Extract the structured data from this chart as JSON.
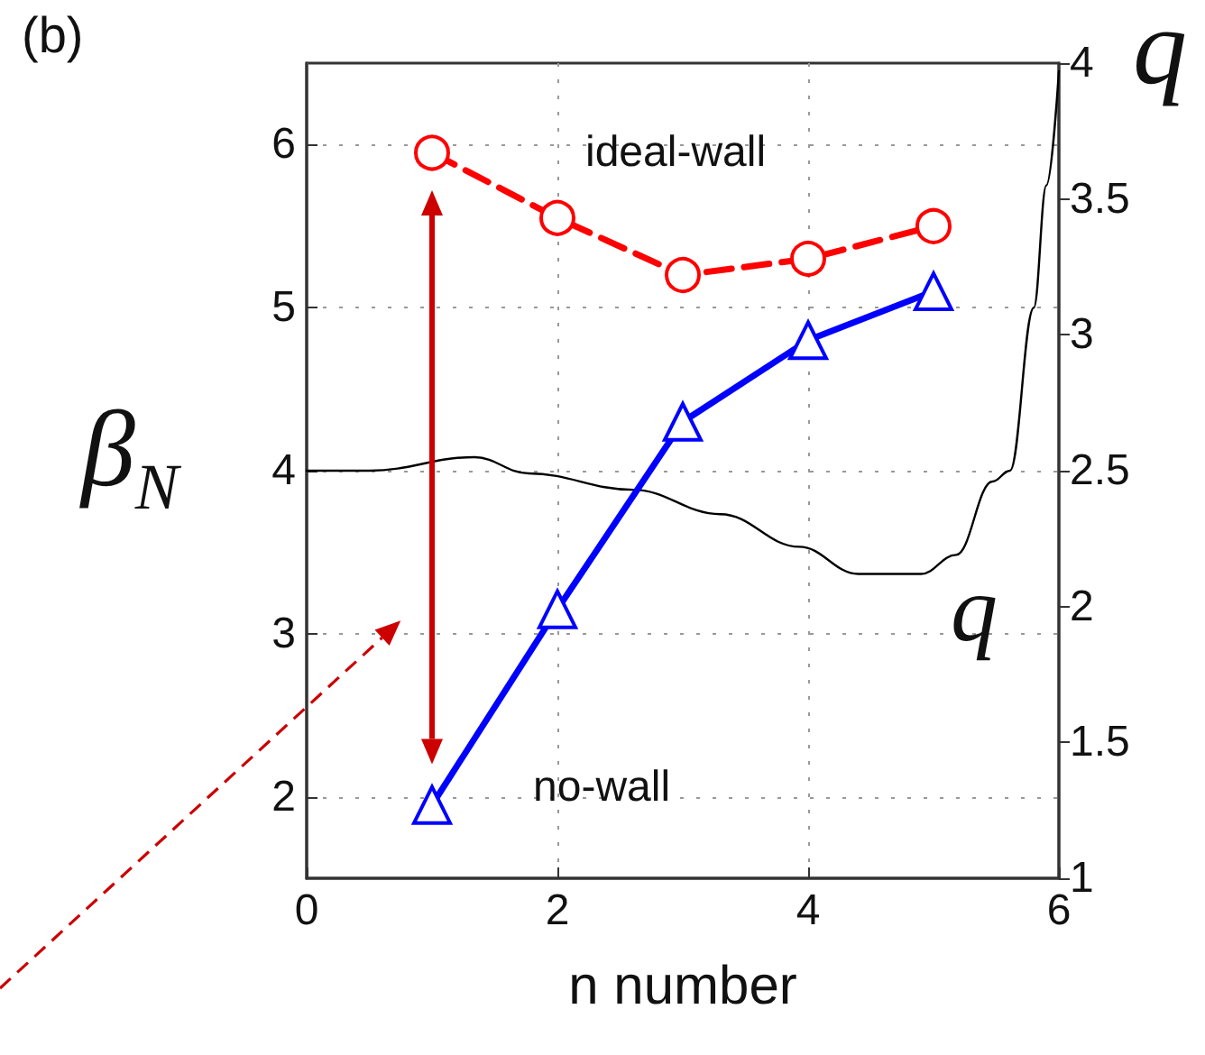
{
  "chart_data": {
    "type": "line",
    "title": "(b)",
    "xlabel": "n number",
    "ylabel": "β$_{N}$",
    "y2label": "q",
    "xlim": [
      0,
      6
    ],
    "xticks": [
      0,
      2,
      4,
      6
    ],
    "ylim": [
      1.5,
      6.5
    ],
    "yticks": [
      2,
      3,
      4,
      5,
      6
    ],
    "y2lim": [
      1,
      4
    ],
    "y2ticks": [
      1,
      1.5,
      2,
      2.5,
      3,
      3.5,
      4
    ],
    "grid": true,
    "legend": false,
    "series": [
      {
        "name": "ideal-wall",
        "color": "#ff0000",
        "marker": "circle",
        "line_style": "dashed",
        "x": [
          1,
          2,
          3,
          4,
          5
        ],
        "values": [
          5.95,
          5.55,
          5.2,
          5.3,
          5.5
        ]
      },
      {
        "name": "no-wall",
        "color": "#0000ff",
        "marker": "triangle",
        "line_style": "solid",
        "x": [
          1,
          2,
          3,
          4,
          5
        ],
        "values": [
          1.95,
          3.15,
          4.3,
          4.8,
          5.1
        ]
      },
      {
        "name": "q",
        "color": "#000000",
        "marker": "none",
        "line_style": "solid",
        "axis": "y2",
        "x": [
          0,
          0.5,
          1.34,
          1.77,
          2.6,
          3.3,
          3.93,
          4.4,
          4.9,
          5.18,
          5.47,
          5.61,
          5.8,
          5.9,
          6
        ],
        "values": [
          2.5,
          2.5,
          2.55,
          2.49,
          2.43,
          2.34,
          2.22,
          2.12,
          2.12,
          2.19,
          2.46,
          2.5,
          3.1,
          3.55,
          3.97
        ]
      }
    ]
  }
}
